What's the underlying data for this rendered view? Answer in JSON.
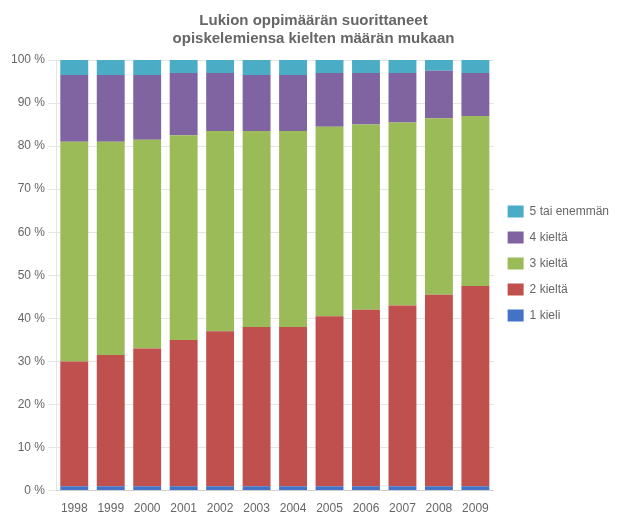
{
  "chart_data": {
    "type": "bar",
    "title": "Lukion oppimäärän suorittaneet\nopiskelemiensa kielten määrän mukaan",
    "categories": [
      "1998",
      "1999",
      "2000",
      "2001",
      "2002",
      "2003",
      "2004",
      "2005",
      "2006",
      "2007",
      "2008",
      "2009"
    ],
    "series": [
      {
        "name": "1 kieli",
        "color": "#4472c4",
        "values": [
          1.0,
          1.0,
          1.0,
          1.0,
          1.0,
          1.0,
          1.0,
          1.0,
          1.0,
          1.0,
          1.0,
          1.0
        ]
      },
      {
        "name": "2 kieltä",
        "color": "#c0504d",
        "values": [
          29.0,
          30.5,
          32.0,
          34.0,
          36.0,
          37.0,
          37.0,
          39.5,
          41.0,
          42.0,
          44.5,
          46.5
        ]
      },
      {
        "name": "3 kieltä",
        "color": "#9bbb59",
        "values": [
          51.0,
          49.5,
          48.5,
          47.5,
          46.5,
          45.5,
          45.5,
          44.0,
          43.0,
          42.5,
          41.0,
          39.5
        ]
      },
      {
        "name": "4 kieltä",
        "color": "#8064a2",
        "values": [
          15.5,
          15.5,
          15.0,
          14.5,
          13.5,
          13.0,
          13.0,
          12.5,
          12.0,
          11.5,
          11.0,
          10.0
        ]
      },
      {
        "name": "5 tai enemmän",
        "color": "#4bacc6",
        "values": [
          3.5,
          3.5,
          3.5,
          3.0,
          3.0,
          3.5,
          3.5,
          3.0,
          3.0,
          3.0,
          2.5,
          3.0
        ]
      }
    ],
    "stacked": true,
    "ylim": [
      0,
      100
    ],
    "yticks": [
      {
        "value": 0,
        "label": "0 %"
      },
      {
        "value": 10,
        "label": "10 %"
      },
      {
        "value": 20,
        "label": "20 %"
      },
      {
        "value": 30,
        "label": "30 %"
      },
      {
        "value": 40,
        "label": "40 %"
      },
      {
        "value": 50,
        "label": "50 %"
      },
      {
        "value": 60,
        "label": "60 %"
      },
      {
        "value": 70,
        "label": "70 %"
      },
      {
        "value": 80,
        "label": "80 %"
      },
      {
        "value": 90,
        "label": "90 %"
      },
      {
        "value": 100,
        "label": "100 %"
      }
    ],
    "grid": "y",
    "legend": "right"
  }
}
